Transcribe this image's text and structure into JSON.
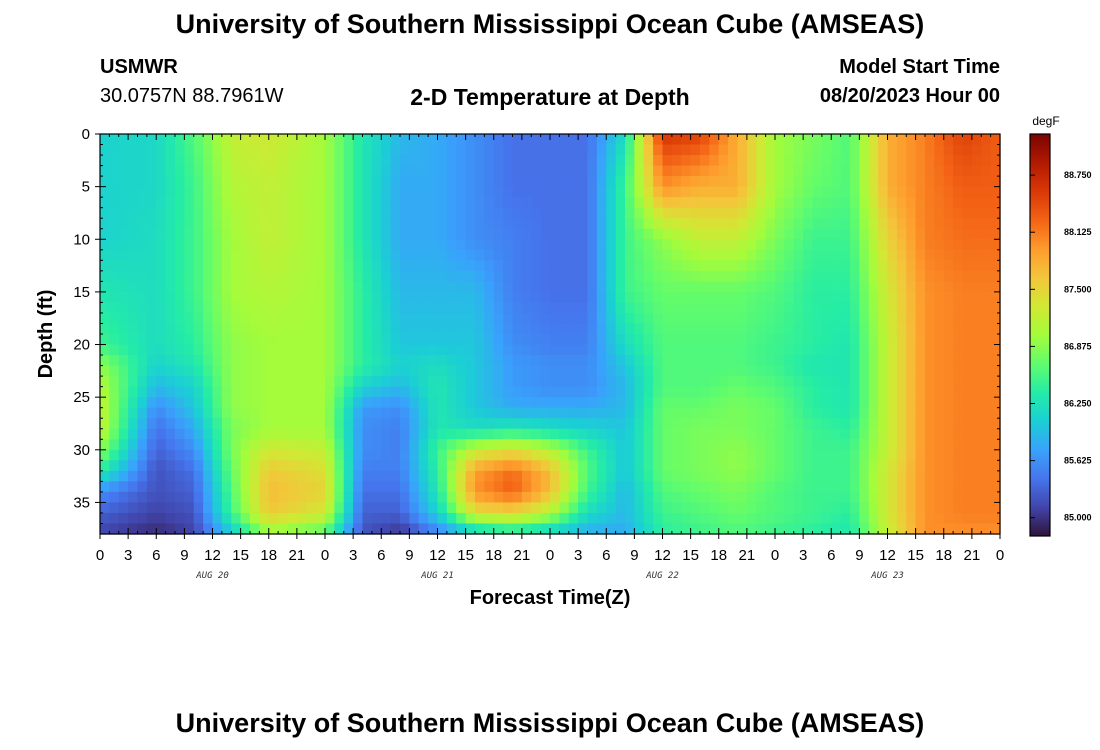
{
  "header": {
    "title": "University of Southern Mississippi Ocean Cube (AMSEAS)",
    "station_id": "USMWR",
    "station_coords": "30.0757N  88.7961W",
    "subtitle": "2-D Temperature at Depth",
    "model_start_label": "Model Start Time",
    "model_start_value": "08/20/2023 Hour 00"
  },
  "footer": {
    "title": "University of Southern Mississippi Ocean Cube (AMSEAS)"
  },
  "chart_data": {
    "type": "heatmap",
    "title": "2-D Temperature at Depth",
    "xlabel": "Forecast Time(Z)",
    "ylabel": "Depth (ft)",
    "x_unit": "forecast hour since 08/20/2023 00Z",
    "xlim": [
      0,
      96
    ],
    "ylim": [
      0,
      38
    ],
    "y_reversed": true,
    "x_tick_labels": [
      "0",
      "3",
      "6",
      "9",
      "12",
      "15",
      "18",
      "21",
      "0",
      "3",
      "6",
      "9",
      "12",
      "15",
      "18",
      "21",
      "0",
      "3",
      "6",
      "9",
      "12",
      "15",
      "18",
      "21",
      "0",
      "3",
      "6",
      "9",
      "12",
      "15",
      "18",
      "21",
      "0"
    ],
    "y_tick_labels": [
      "0",
      "5",
      "10",
      "15",
      "20",
      "25",
      "30",
      "35"
    ],
    "y_ticks": [
      0,
      5,
      10,
      15,
      20,
      25,
      30,
      35
    ],
    "day_labels": [
      "AUG 20",
      "AUG 21",
      "AUG 22",
      "AUG 23"
    ],
    "colorbar": {
      "unit": "degF",
      "range": [
        84.8,
        89.2
      ],
      "tick_values": [
        85.0,
        85.625,
        86.25,
        86.875,
        87.5,
        88.125,
        88.75
      ],
      "tick_labels": [
        "85.000",
        "85.625",
        "86.250",
        "86.875",
        "87.500",
        "88.125",
        "88.750"
      ],
      "colors": [
        "#30123b",
        "#4145ab",
        "#4675ed",
        "#39a2fc",
        "#1bcfd4",
        "#24eca6",
        "#61fc6c",
        "#a4fc3b",
        "#d1e834",
        "#f3c63a",
        "#fe9b2d",
        "#f36315",
        "#d93806",
        "#b11901",
        "#7a0402"
      ]
    },
    "depths": [
      0,
      5,
      10,
      15,
      20,
      22,
      24,
      26,
      28,
      30,
      32,
      34,
      36,
      38
    ],
    "hours": [
      0,
      6,
      10,
      14,
      18,
      24,
      28,
      32,
      36,
      40,
      44,
      48,
      52,
      56,
      60,
      64,
      68,
      72,
      76,
      80,
      84,
      88,
      92,
      96
    ],
    "temperature": [
      [
        86.1,
        86.15,
        86.6,
        87.2,
        87.3,
        87.0,
        86.3,
        85.9,
        85.8,
        85.6,
        85.4,
        85.4,
        85.4,
        86.2,
        88.6,
        88.5,
        87.8,
        87.0,
        86.8,
        86.6,
        87.8,
        88.1,
        88.5,
        88.3
      ],
      [
        86.1,
        86.15,
        86.5,
        87.1,
        87.2,
        87.0,
        86.3,
        85.8,
        85.8,
        85.6,
        85.4,
        85.4,
        85.4,
        86.5,
        88.0,
        87.8,
        87.8,
        87.0,
        86.7,
        86.6,
        87.8,
        88.1,
        88.3,
        88.3
      ],
      [
        86.1,
        86.2,
        86.5,
        87.0,
        87.2,
        87.0,
        86.3,
        85.8,
        85.8,
        85.6,
        85.5,
        85.4,
        85.4,
        86.5,
        86.9,
        87.2,
        87.2,
        86.8,
        86.5,
        86.5,
        87.5,
        88.1,
        88.2,
        88.2
      ],
      [
        86.3,
        86.2,
        86.5,
        87.0,
        87.1,
        87.0,
        86.4,
        85.9,
        85.9,
        85.9,
        85.5,
        85.4,
        85.4,
        86.5,
        86.7,
        86.7,
        86.7,
        86.6,
        86.4,
        86.4,
        87.3,
        88.0,
        88.1,
        88.1
      ],
      [
        86.5,
        86.2,
        86.4,
        86.9,
        87.0,
        87.0,
        86.4,
        86.0,
        86.0,
        86.0,
        85.6,
        85.5,
        85.5,
        86.2,
        86.6,
        86.6,
        86.6,
        86.5,
        86.4,
        86.3,
        87.2,
        88.0,
        88.1,
        88.1
      ],
      [
        86.9,
        86.1,
        86.3,
        86.9,
        87.0,
        87.0,
        86.4,
        86.1,
        86.2,
        86.0,
        85.7,
        85.6,
        85.6,
        86.0,
        86.6,
        86.6,
        86.6,
        86.5,
        86.3,
        86.3,
        87.2,
        88.0,
        88.1,
        88.1
      ],
      [
        87.1,
        85.9,
        86.1,
        86.9,
        87.0,
        87.0,
        86.1,
        85.9,
        86.3,
        86.0,
        85.7,
        85.6,
        85.6,
        85.9,
        86.6,
        86.6,
        86.7,
        86.6,
        86.4,
        86.3,
        87.2,
        88.0,
        88.1,
        88.1
      ],
      [
        87.2,
        85.6,
        86.0,
        86.9,
        87.0,
        87.0,
        85.7,
        85.6,
        86.3,
        86.0,
        85.8,
        85.8,
        85.8,
        85.9,
        86.7,
        86.7,
        86.8,
        86.7,
        86.4,
        86.3,
        87.2,
        88.0,
        88.1,
        88.1
      ],
      [
        87.2,
        85.4,
        85.8,
        86.8,
        87.0,
        87.0,
        85.6,
        85.5,
        86.3,
        86.2,
        86.3,
        86.2,
        86.1,
        86.0,
        86.7,
        86.8,
        86.8,
        86.7,
        86.5,
        86.4,
        87.2,
        88.0,
        88.1,
        88.1
      ],
      [
        86.9,
        85.3,
        85.6,
        86.8,
        87.3,
        87.2,
        85.6,
        85.5,
        86.5,
        87.2,
        87.4,
        87.1,
        86.5,
        86.0,
        86.7,
        86.8,
        86.9,
        86.7,
        86.5,
        86.5,
        87.2,
        88.0,
        88.1,
        88.1
      ],
      [
        86.4,
        85.2,
        85.4,
        86.7,
        87.6,
        87.4,
        85.5,
        85.5,
        86.4,
        87.9,
        88.2,
        87.7,
        86.6,
        86.0,
        86.7,
        86.8,
        86.9,
        86.7,
        86.5,
        86.5,
        87.3,
        88.0,
        88.1,
        88.1
      ],
      [
        85.6,
        85.2,
        85.3,
        86.6,
        87.7,
        87.5,
        85.4,
        85.4,
        86.3,
        88.0,
        88.3,
        87.7,
        86.5,
        85.9,
        86.6,
        86.7,
        86.8,
        86.6,
        86.5,
        86.5,
        87.3,
        88.0,
        88.1,
        88.1
      ],
      [
        85.3,
        85.1,
        85.2,
        86.5,
        87.6,
        87.3,
        85.3,
        85.3,
        86.1,
        87.4,
        87.5,
        87.1,
        86.2,
        85.9,
        86.5,
        86.6,
        86.7,
        86.6,
        86.5,
        86.4,
        87.3,
        88.0,
        88.1,
        88.1
      ],
      [
        85.1,
        84.95,
        85.1,
        86.0,
        86.9,
        86.6,
        85.2,
        85.0,
        85.5,
        86.0,
        86.2,
        86.0,
        85.8,
        85.8,
        86.4,
        86.5,
        86.6,
        86.5,
        86.4,
        86.3,
        87.2,
        88.0,
        88.0,
        88.0
      ]
    ]
  }
}
